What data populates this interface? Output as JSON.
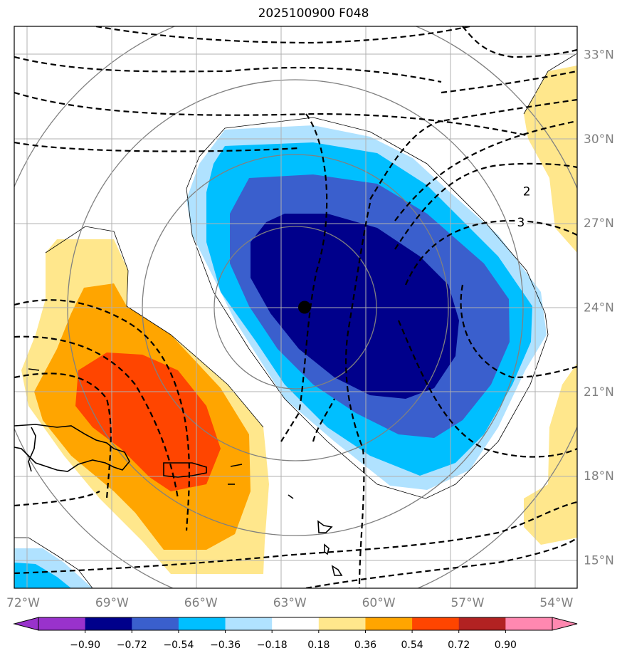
{
  "title": "2025100900 F048",
  "map": {
    "projection": "lat-lon",
    "lon_range": [
      -72.3,
      -53.3
    ],
    "lat_range": [
      14.0,
      34.0
    ],
    "lon_ticks": [
      {
        "value": -72,
        "label": "72°W"
      },
      {
        "value": -69,
        "label": "69°W"
      },
      {
        "value": -66,
        "label": "66°W"
      },
      {
        "value": -63,
        "label": "63°W"
      },
      {
        "value": -60,
        "label": "60°W"
      },
      {
        "value": -57,
        "label": "57°W"
      },
      {
        "value": -54,
        "label": "54°W"
      }
    ],
    "lat_ticks": [
      {
        "value": 33,
        "label": "33°N"
      },
      {
        "value": 30,
        "label": "30°N"
      },
      {
        "value": 27,
        "label": "27°N"
      },
      {
        "value": 24,
        "label": "24°N"
      },
      {
        "value": 21,
        "label": "21°N"
      },
      {
        "value": 18,
        "label": "18°N"
      },
      {
        "value": 15,
        "label": "15°N"
      }
    ],
    "grid": true,
    "center_marker": {
      "lon": -62.5,
      "lat": 24.0
    },
    "range_rings_center": {
      "lon": -62.5,
      "lat": 24.0
    },
    "contour_labels": [
      {
        "text": "2",
        "lon": -55.0,
        "lat": 28.0
      },
      {
        "text": "3",
        "lon": -55.2,
        "lat": 26.9
      }
    ]
  },
  "colorbar": {
    "ticks": [
      "−0.90",
      "−0.72",
      "−0.54",
      "−0.36",
      "−0.18",
      "0.18",
      "0.36",
      "0.54",
      "0.72",
      "0.90"
    ],
    "colors": {
      "under": "#9932CC",
      "bins": [
        "#9932CC",
        "#00008B",
        "#3A5FCD",
        "#00BFFF",
        "#B0E2FF",
        "#FFFFFF",
        "#FFE78C",
        "#FFA500",
        "#FF4500",
        "#B22222",
        "#FF88B0"
      ],
      "over": "#FF88B0"
    }
  }
}
